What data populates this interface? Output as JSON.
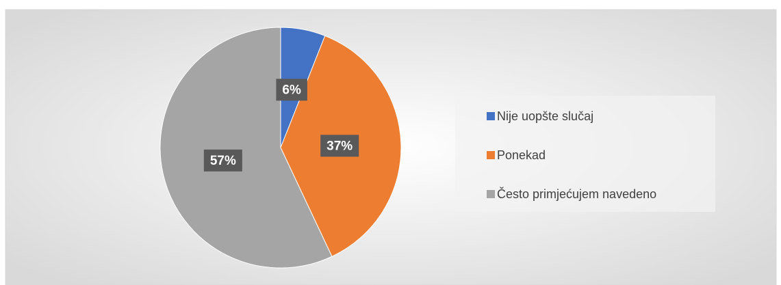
{
  "chart_data": {
    "type": "pie",
    "categories": [
      "Nije uopšte slučaj",
      "Ponekad",
      "Često primjećujem navedeno"
    ],
    "values": [
      6,
      37,
      57
    ],
    "value_labels": [
      "6%",
      "37%",
      "57%"
    ],
    "colors": [
      "#4472c4",
      "#ed7d31",
      "#a5a5a5"
    ],
    "legend": "right"
  }
}
